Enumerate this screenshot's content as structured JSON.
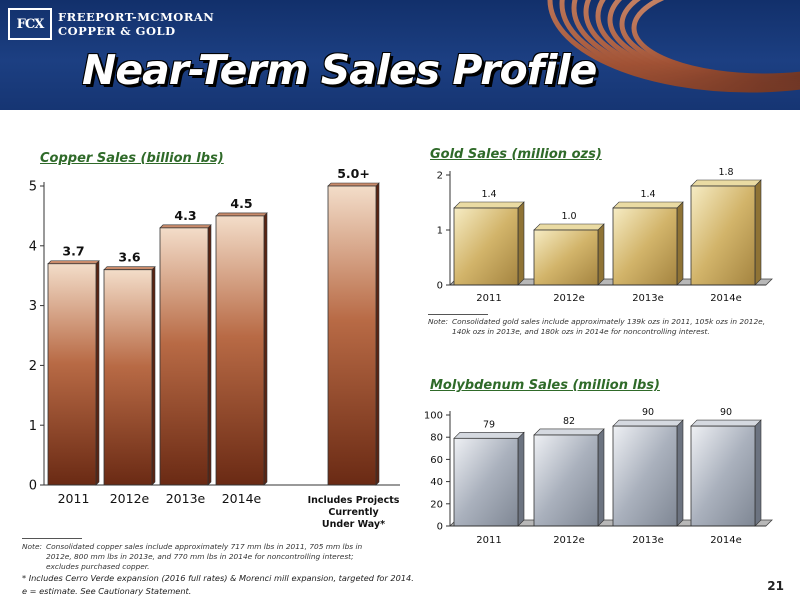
{
  "header": {
    "logo_mark": "FCX",
    "logo_line1": "FREEPORT-MCMORAN",
    "logo_line2": "COPPER & GOLD",
    "title": "Near-Term Sales Profile"
  },
  "colors": {
    "header_bg": "#1c3f82",
    "copper": "#8a3e22",
    "gold": "#d8c07a",
    "moly": "#b9bfc9",
    "chart_title": "#2f6a29"
  },
  "chart_data": [
    {
      "type": "bar",
      "title": "Copper Sales (billion lbs)",
      "categories": [
        "2011",
        "2012e",
        "2013e",
        "2014e",
        "Includes Projects Currently Under Way*"
      ],
      "values": [
        3.7,
        3.6,
        4.3,
        4.5,
        5.0
      ],
      "data_labels": [
        "3.7",
        "3.6",
        "4.3",
        "4.5",
        "5.0+"
      ],
      "ylim": [
        0,
        5
      ],
      "yticks": [
        0,
        1,
        2,
        3,
        4,
        5
      ],
      "grid": false,
      "legend": "none"
    },
    {
      "type": "bar",
      "title": "Gold Sales (million ozs)",
      "categories": [
        "2011",
        "2012e",
        "2013e",
        "2014e"
      ],
      "values": [
        1.4,
        1.0,
        1.4,
        1.8
      ],
      "data_labels": [
        "1.4",
        "1.0",
        "1.4",
        "1.8"
      ],
      "ylim": [
        0,
        2
      ],
      "yticks": [
        0,
        1,
        2
      ],
      "grid": false,
      "legend": "none"
    },
    {
      "type": "bar",
      "title": "Molybdenum Sales (million lbs)",
      "categories": [
        "2011",
        "2012e",
        "2013e",
        "2014e"
      ],
      "values": [
        79,
        82,
        90,
        90
      ],
      "data_labels": [
        "79",
        "82",
        "90",
        "90"
      ],
      "ylim": [
        0,
        100
      ],
      "yticks": [
        0,
        20,
        40,
        60,
        80,
        100
      ],
      "grid": false,
      "legend": "none"
    }
  ],
  "notes": {
    "prefix": "Note:",
    "copper_note": "Consolidated copper sales include approximately 717 mm lbs in 2011, 705 mm lbs in 2012e, 800 mm lbs in 2013e, and 770 mm lbs in 2014e for noncontrolling interest; excludes purchased copper.",
    "gold_note": "Consolidated gold sales include approximately 139k ozs in 2011, 105k ozs in 2012e, 140k ozs in 2013e, and 180k ozs in 2014e for noncontrolling interest.",
    "footnote1": "* Includes Cerro Verde expansion (2016 full rates) & Morenci mill expansion, targeted for 2014.",
    "footnote2": "e = estimate. See Cautionary Statement."
  },
  "page_number": "21"
}
